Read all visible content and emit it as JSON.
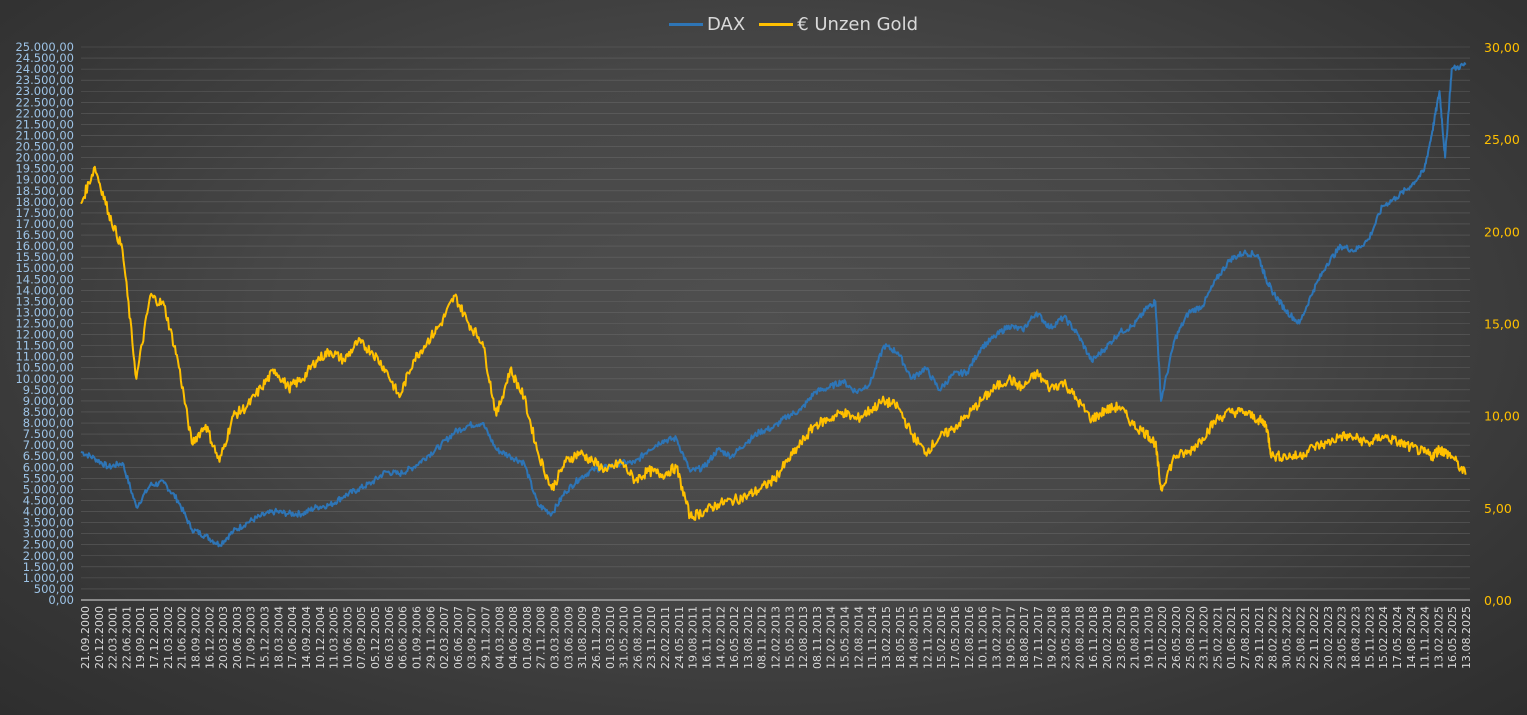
{
  "chart_data": {
    "type": "line",
    "title": "",
    "legend_position": "top",
    "grid": true,
    "series": [
      {
        "name": "DAX",
        "axis": "left",
        "color": "#2e75b6",
        "x": [
          "2000.72",
          "2000.97",
          "2001.22",
          "2001.47",
          "2001.72",
          "2001.97",
          "2002.22",
          "2002.47",
          "2002.72",
          "2002.97",
          "2003.22",
          "2003.47",
          "2003.72",
          "2003.97",
          "2004.22",
          "2004.47",
          "2004.72",
          "2004.97",
          "2005.22",
          "2005.47",
          "2005.72",
          "2005.97",
          "2006.22",
          "2006.47",
          "2006.72",
          "2006.97",
          "2007.22",
          "2007.47",
          "2007.72",
          "2007.97",
          "2008.22",
          "2008.47",
          "2008.72",
          "2008.97",
          "2009.22",
          "2009.47",
          "2009.72",
          "2009.97",
          "2010.22",
          "2010.47",
          "2010.72",
          "2010.97",
          "2011.22",
          "2011.47",
          "2011.72",
          "2011.97",
          "2012.22",
          "2012.47",
          "2012.72",
          "2012.97",
          "2013.22",
          "2013.47",
          "2013.72",
          "2013.97",
          "2014.22",
          "2014.47",
          "2014.72",
          "2014.97",
          "2015.22",
          "2015.47",
          "2015.72",
          "2015.97",
          "2016.22",
          "2016.47",
          "2016.72",
          "2016.97",
          "2017.22",
          "2017.47",
          "2017.72",
          "2017.97",
          "2018.22",
          "2018.47",
          "2018.72",
          "2018.97",
          "2019.22",
          "2019.47",
          "2019.72",
          "2019.97",
          "2020.12",
          "2020.22",
          "2020.47",
          "2020.72",
          "2020.97",
          "2021.22",
          "2021.47",
          "2021.72",
          "2021.97",
          "2022.12",
          "2022.22",
          "2022.47",
          "2022.72",
          "2022.97",
          "2023.22",
          "2023.47",
          "2023.72",
          "2023.97",
          "2024.22",
          "2024.47",
          "2024.72",
          "2024.97",
          "2025.12",
          "2025.25",
          "2025.35",
          "2025.47",
          "2025.72"
        ],
        "values": [
          6700,
          6400,
          6000,
          6200,
          4200,
          5200,
          5300,
          4500,
          3200,
          2900,
          2500,
          3100,
          3500,
          3800,
          4000,
          3900,
          3900,
          4200,
          4300,
          4700,
          5000,
          5300,
          5800,
          5700,
          6000,
          6500,
          7000,
          7600,
          7900,
          8000,
          6800,
          6500,
          6200,
          4300,
          3900,
          4900,
          5500,
          5900,
          6000,
          6200,
          6200,
          6800,
          7200,
          7300,
          5800,
          6000,
          6800,
          6500,
          7100,
          7600,
          7800,
          8300,
          8600,
          9400,
          9600,
          9900,
          9400,
          9800,
          11500,
          11200,
          10000,
          10500,
          9500,
          10200,
          10300,
          11400,
          11900,
          12400,
          12200,
          13000,
          12300,
          12800,
          12000,
          10800,
          11400,
          12100,
          12400,
          13200,
          13500,
          9000,
          11800,
          13000,
          13300,
          14500,
          15400,
          15700,
          15600,
          14500,
          14000,
          13100,
          12500,
          14000,
          15200,
          16000,
          15800,
          16300,
          17800,
          18200,
          18700,
          19400,
          21200,
          23000,
          20000,
          24000,
          24200
        ]
      },
      {
        "name": "€ Unzen Gold",
        "axis": "right",
        "color": "#ffc000",
        "x": [
          "2000.72",
          "2000.97",
          "2001.22",
          "2001.47",
          "2001.72",
          "2001.97",
          "2002.22",
          "2002.47",
          "2002.72",
          "2002.97",
          "2003.22",
          "2003.47",
          "2003.72",
          "2003.97",
          "2004.22",
          "2004.47",
          "2004.72",
          "2004.97",
          "2005.22",
          "2005.47",
          "2005.72",
          "2005.97",
          "2006.22",
          "2006.47",
          "2006.72",
          "2006.97",
          "2007.22",
          "2007.47",
          "2007.72",
          "2007.97",
          "2008.22",
          "2008.47",
          "2008.72",
          "2008.97",
          "2009.22",
          "2009.47",
          "2009.72",
          "2009.97",
          "2010.22",
          "2010.47",
          "2010.72",
          "2010.97",
          "2011.22",
          "2011.47",
          "2011.72",
          "2011.97",
          "2012.22",
          "2012.47",
          "2012.72",
          "2012.97",
          "2013.22",
          "2013.47",
          "2013.72",
          "2013.97",
          "2014.22",
          "2014.47",
          "2014.72",
          "2014.97",
          "2015.22",
          "2015.47",
          "2015.72",
          "2015.97",
          "2016.22",
          "2016.47",
          "2016.72",
          "2016.97",
          "2017.22",
          "2017.47",
          "2017.72",
          "2017.97",
          "2018.22",
          "2018.47",
          "2018.72",
          "2018.97",
          "2019.22",
          "2019.47",
          "2019.72",
          "2019.97",
          "2020.12",
          "2020.22",
          "2020.47",
          "2020.72",
          "2020.97",
          "2021.22",
          "2021.47",
          "2021.72",
          "2021.97",
          "2022.12",
          "2022.22",
          "2022.47",
          "2022.72",
          "2022.97",
          "2023.22",
          "2023.47",
          "2023.72",
          "2023.97",
          "2024.22",
          "2024.47",
          "2024.72",
          "2024.97",
          "2025.12",
          "2025.25",
          "2025.35",
          "2025.47",
          "2025.72"
        ],
        "values": [
          21.5,
          23.5,
          21.0,
          19.0,
          12.0,
          16.5,
          16.0,
          13.0,
          8.5,
          9.5,
          7.5,
          10.0,
          10.5,
          11.5,
          12.5,
          11.5,
          12.0,
          13.0,
          13.5,
          13.0,
          14.0,
          13.5,
          12.5,
          11.0,
          13.0,
          14.0,
          15.0,
          16.5,
          15.0,
          14.0,
          10.0,
          12.5,
          11.0,
          8.0,
          6.0,
          7.5,
          8.0,
          7.5,
          7.0,
          7.5,
          6.5,
          7.0,
          6.8,
          7.2,
          4.5,
          4.8,
          5.2,
          5.4,
          5.6,
          6.0,
          6.5,
          7.5,
          8.5,
          9.5,
          9.8,
          10.2,
          9.8,
          10.3,
          10.8,
          10.5,
          9.0,
          8.0,
          8.8,
          9.3,
          10.0,
          10.8,
          11.5,
          12.0,
          11.5,
          12.3,
          11.5,
          11.8,
          10.8,
          9.8,
          10.3,
          10.5,
          9.5,
          9.0,
          8.5,
          6.0,
          7.8,
          8.0,
          8.8,
          9.8,
          10.2,
          10.2,
          9.8,
          9.5,
          7.8,
          7.8,
          7.8,
          8.3,
          8.5,
          8.9,
          8.8,
          8.5,
          8.9,
          8.6,
          8.3,
          8.0,
          7.8,
          8.2,
          8.0,
          7.8,
          6.8
        ]
      }
    ],
    "y_left": {
      "min": 0,
      "max": 25000,
      "step": 500,
      "tick_labels": [
        "0,00",
        "500,00",
        "1.000,00",
        "1.500,00",
        "2.000,00",
        "2.500,00",
        "3.000,00",
        "3.500,00",
        "4.000,00",
        "4.500,00",
        "5.000,00",
        "5.500,00",
        "6.000,00",
        "6.500,00",
        "7.000,00",
        "7.500,00",
        "8.000,00",
        "8.500,00",
        "9.000,00",
        "9.500,00",
        "10.000,00",
        "10.500,00",
        "11.000,00",
        "11.500,00",
        "12.000,00",
        "12.500,00",
        "13.000,00",
        "13.500,00",
        "14.000,00",
        "14.500,00",
        "15.000,00",
        "15.500,00",
        "16.000,00",
        "16.500,00",
        "17.000,00",
        "17.500,00",
        "18.000,00",
        "18.500,00",
        "19.000,00",
        "19.500,00",
        "20.000,00",
        "20.500,00",
        "21.000,00",
        "21.500,00",
        "22.000,00",
        "22.500,00",
        "23.000,00",
        "23.500,00",
        "24.000,00",
        "24.500,00",
        "25.000,00"
      ],
      "label_color": "#9dc3e6"
    },
    "y_right": {
      "min": 0,
      "max": 30,
      "step": 5,
      "tick_labels": [
        "0,00",
        "5,00",
        "10,00",
        "15,00",
        "20,00",
        "25,00",
        "30,00"
      ],
      "label_color": "#ffc000"
    },
    "x_axis": {
      "min": 2000.72,
      "max": 2025.8,
      "tick_labels": [
        "21.09.2000",
        "20.12.2000",
        "22.03.2001",
        "22.06.2001",
        "19.09.2001",
        "17.12.2001",
        "21.03.2002",
        "21.06.2002",
        "18.09.2002",
        "16.12.2002",
        "20.03.2003",
        "20.06.2003",
        "17.09.2003",
        "15.12.2003",
        "18.03.2004",
        "17.06.2004",
        "14.09.2004",
        "10.12.2004",
        "11.03.2005",
        "10.06.2005",
        "07.09.2005",
        "05.12.2005",
        "06.03.2006",
        "06.06.2006",
        "01.09.2006",
        "29.11.2006",
        "02.03.2007",
        "06.06.2007",
        "03.09.2007",
        "29.11.2007",
        "04.03.2008",
        "04.06.2008",
        "01.09.2008",
        "27.11.2008",
        "03.03.2009",
        "03.06.2009",
        "31.08.2009",
        "26.11.2009",
        "01.03.2010",
        "31.05.2010",
        "26.08.2010",
        "23.11.2010",
        "22.02.2011",
        "24.05.2011",
        "19.08.2011",
        "16.11.2011",
        "14.02.2012",
        "16.05.2012",
        "13.08.2012",
        "08.11.2012",
        "12.02.2013",
        "15.05.2013",
        "12.08.2013",
        "08.11.2013",
        "12.02.2014",
        "15.05.2014",
        "12.08.2014",
        "11.11.2014",
        "13.02.2015",
        "18.05.2015",
        "14.08.2015",
        "12.11.2015",
        "15.02.2016",
        "17.05.2016",
        "12.08.2016",
        "10.11.2016",
        "13.02.2017",
        "19.05.2017",
        "18.08.2017",
        "17.11.2017",
        "19.02.2018",
        "23.05.2018",
        "20.08.2018",
        "16.11.2018",
        "20.02.2019",
        "23.05.2019",
        "21.08.2019",
        "19.11.2019",
        "21.02.2020",
        "26.05.2020",
        "25.08.2020",
        "23.11.2020",
        "25.02.2021",
        "01.06.2021",
        "27.08.2021",
        "29.11.2021",
        "28.02.2022",
        "30.05.2022",
        "25.08.2022",
        "22.11.2022",
        "20.02.2023",
        "23.05.2023",
        "18.08.2023",
        "15.11.2023",
        "15.02.2024",
        "17.05.2024",
        "14.08.2024",
        "11.11.2024",
        "13.02.2025",
        "16.05.2025",
        "13.08.2025"
      ],
      "label_color": "#d9d9d9"
    },
    "gridline_color": "#7a7a7a"
  },
  "legend": {
    "items": [
      {
        "label": "DAX",
        "color": "#2e75b6"
      },
      {
        "label": "€ Unzen Gold",
        "color": "#ffc000"
      }
    ]
  }
}
